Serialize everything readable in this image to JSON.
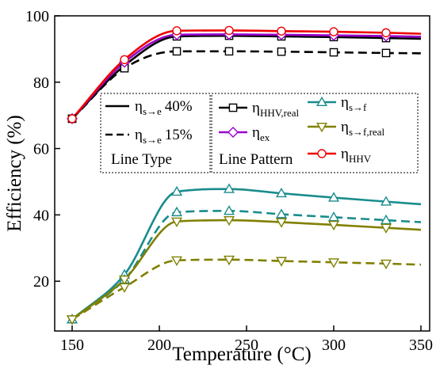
{
  "chart_data": {
    "type": "line",
    "title": "",
    "xlabel": "Temperature (°C)",
    "ylabel": "Efficiency (%)",
    "xlim": [
      140,
      355
    ],
    "ylim": [
      5,
      100
    ],
    "xticks": [
      150,
      200,
      250,
      300,
      350
    ],
    "yticks": [
      20,
      40,
      60,
      80,
      100
    ],
    "grid": false,
    "x": [
      150,
      180,
      210,
      240,
      270,
      300,
      330,
      350
    ],
    "series": [
      {
        "name": "ηHHV,real",
        "label_main": "η",
        "label_sub": "HHV,real",
        "case": "40%",
        "marker": "square",
        "color": "#000000",
        "values": [
          69.0,
          85.0,
          93.8,
          94.0,
          93.8,
          93.6,
          93.3,
          93.1
        ]
      },
      {
        "name": "ηHHV,real",
        "label_main": "η",
        "label_sub": "HHV,real",
        "case": "15%",
        "marker": "square",
        "color": "#000000",
        "values": [
          69.0,
          84.2,
          89.3,
          89.3,
          89.2,
          89.0,
          88.8,
          88.7
        ]
      },
      {
        "name": "ηex",
        "label_main": "η",
        "label_sub": "ex",
        "case": "40%",
        "marker": "diamond",
        "color": "#9900cc",
        "values": [
          69.0,
          86.0,
          94.3,
          94.4,
          94.3,
          94.1,
          93.9,
          93.7
        ]
      },
      {
        "name": "ηHHV",
        "label_main": "η",
        "label_sub": "HHV",
        "case": "40%",
        "marker": "circle",
        "color": "#ee0000",
        "values": [
          69.0,
          86.8,
          95.5,
          95.6,
          95.4,
          95.2,
          94.9,
          94.6
        ]
      },
      {
        "name": "ηs→f",
        "label_main": "η",
        "label_sub": "s→f",
        "case": "40%",
        "marker": "triangle-up",
        "color": "#1a8c8c",
        "values": [
          8.5,
          22.0,
          47.0,
          47.8,
          46.5,
          45.2,
          44.0,
          43.2
        ]
      },
      {
        "name": "ηs→f",
        "label_main": "η",
        "label_sub": "s→f",
        "case": "15%",
        "marker": "triangle-up",
        "color": "#1a8c8c",
        "values": [
          8.5,
          20.5,
          40.8,
          41.2,
          40.2,
          39.3,
          38.4,
          37.8
        ]
      },
      {
        "name": "ηs→f,real",
        "label_main": "η",
        "label_sub": "s→f,real",
        "case": "40%",
        "marker": "triangle-down",
        "color": "#808000",
        "values": [
          8.5,
          20.5,
          38.0,
          38.4,
          37.8,
          37.0,
          36.1,
          35.5
        ]
      },
      {
        "name": "ηs→f,real",
        "label_main": "η",
        "label_sub": "s→f,real",
        "case": "15%",
        "marker": "triangle-down",
        "color": "#808000",
        "values": [
          8.5,
          18.2,
          26.3,
          26.5,
          26.1,
          25.7,
          25.3,
          25.0
        ]
      }
    ],
    "legend_line_type": {
      "items": [
        {
          "main": "η",
          "sub": "s→e",
          "value": "40%",
          "style": "solid"
        },
        {
          "main": "η",
          "sub": "s→e",
          "value": "15%",
          "style": "dashed"
        }
      ],
      "title": "Line Type"
    },
    "legend_line_pattern": {
      "items": [
        {
          "main": "η",
          "sub": "HHV,real",
          "marker": "square",
          "color": "#000000"
        },
        {
          "main": "η",
          "sub": "s→f",
          "marker": "triangle-up",
          "color": "#1a8c8c"
        },
        {
          "main": "η",
          "sub": "ex",
          "marker": "diamond",
          "color": "#9900cc"
        },
        {
          "main": "η",
          "sub": "s→f,real",
          "marker": "triangle-down",
          "color": "#808000"
        },
        {
          "main": "η",
          "sub": "HHV",
          "marker": "circle",
          "color": "#ee0000"
        }
      ],
      "title": "Line Pattern"
    }
  }
}
